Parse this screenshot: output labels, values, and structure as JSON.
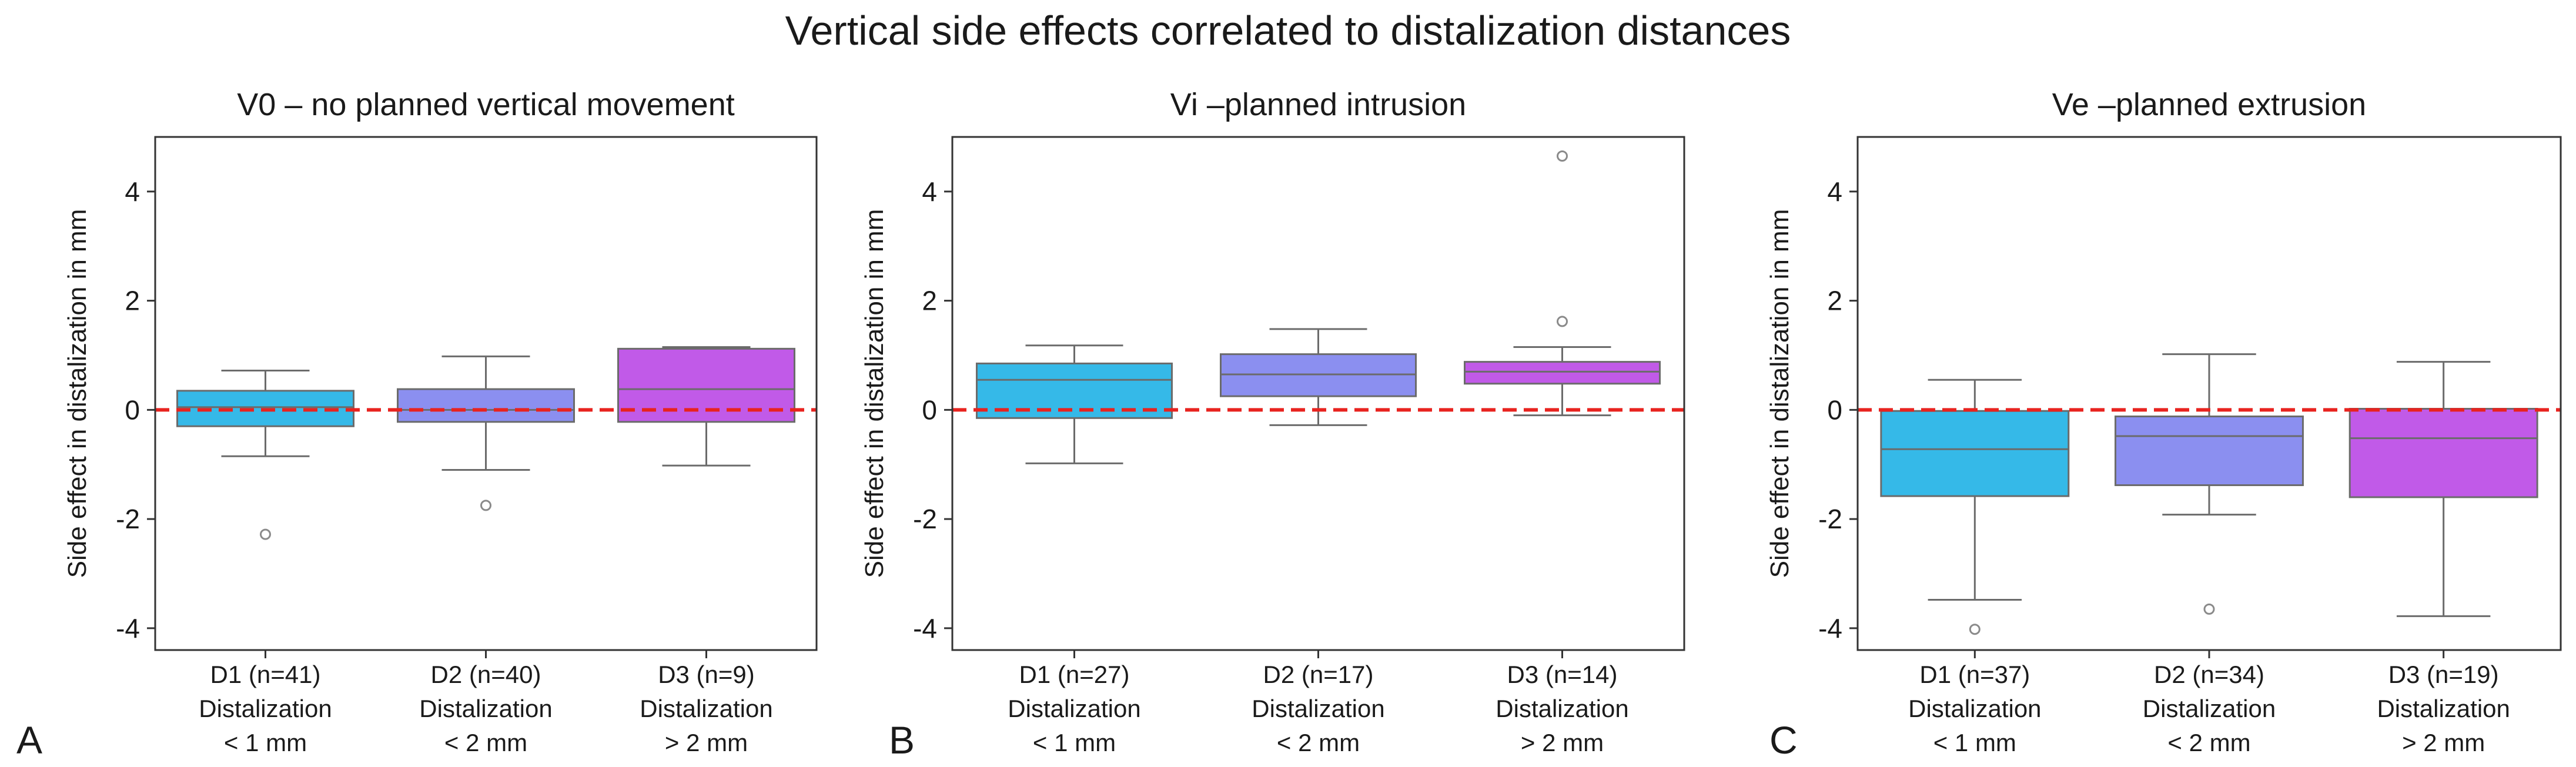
{
  "figure_title": "Vertical side effects correlated to distalization distances",
  "colors": {
    "D1": "#35b9e8",
    "D2": "#8b8ff0",
    "D3": "#c15ae8",
    "reference_line": "#e8231f",
    "axis": "#333333",
    "whisker": "#6b6b6b"
  },
  "chart_data": [
    {
      "type": "box",
      "panel_label": "A",
      "title": "V0 – no planned vertical movement",
      "ylabel": "Side effect in distalization in mm",
      "xlabel": "",
      "ylim": [
        -4.4,
        5.0
      ],
      "yticks": [
        -4,
        -2,
        0,
        2,
        4
      ],
      "reference_line": 0,
      "categories": [
        {
          "group": "D1 (n=41)",
          "line2": "Distalization",
          "line3": "< 1 mm",
          "color_key": "D1",
          "whisker_low": -0.85,
          "q1": -0.3,
          "median": 0.05,
          "q3": 0.35,
          "whisker_high": 0.72,
          "outliers": [
            -2.28
          ]
        },
        {
          "group": "D2 (n=40)",
          "line2": "Distalization",
          "line3": "< 2 mm",
          "color_key": "D2",
          "whisker_low": -1.1,
          "q1": -0.22,
          "median": 0.0,
          "q3": 0.38,
          "whisker_high": 0.98,
          "outliers": [
            -1.75
          ]
        },
        {
          "group": "D3 (n=9)",
          "line2": "Distalization",
          "line3": "> 2 mm",
          "color_key": "D3",
          "whisker_low": -1.02,
          "q1": -0.22,
          "median": 0.38,
          "q3": 1.12,
          "whisker_high": 1.15,
          "outliers": []
        }
      ]
    },
    {
      "type": "box",
      "panel_label": "B",
      "title": "Vi –planned intrusion",
      "ylabel": "Side effect in distalization in mm",
      "xlabel": "",
      "ylim": [
        -4.4,
        5.0
      ],
      "yticks": [
        -4,
        -2,
        0,
        2,
        4
      ],
      "reference_line": 0,
      "categories": [
        {
          "group": "D1 (n=27)",
          "line2": "Distalization",
          "line3": "< 1 mm",
          "color_key": "D1",
          "whisker_low": -0.98,
          "q1": -0.15,
          "median": 0.55,
          "q3": 0.85,
          "whisker_high": 1.18,
          "outliers": []
        },
        {
          "group": "D2 (n=17)",
          "line2": "Distalization",
          "line3": "< 2 mm",
          "color_key": "D2",
          "whisker_low": -0.28,
          "q1": 0.25,
          "median": 0.65,
          "q3": 1.02,
          "whisker_high": 1.48,
          "outliers": []
        },
        {
          "group": "D3 (n=14)",
          "line2": "Distalization",
          "line3": "> 2 mm",
          "color_key": "D3",
          "whisker_low": -0.1,
          "q1": 0.48,
          "median": 0.7,
          "q3": 0.88,
          "whisker_high": 1.15,
          "outliers": [
            1.62,
            4.65
          ]
        }
      ]
    },
    {
      "type": "box",
      "panel_label": "C",
      "title": "Ve –planned extrusion",
      "ylabel": "Side effect in distalization in mm",
      "xlabel": "",
      "ylim": [
        -4.4,
        5.0
      ],
      "yticks": [
        -4,
        -2,
        0,
        2,
        4
      ],
      "reference_line": 0,
      "categories": [
        {
          "group": "D1 (n=37)",
          "line2": "Distalization",
          "line3": "< 1 mm",
          "color_key": "D1",
          "whisker_low": -3.48,
          "q1": -1.58,
          "median": -0.72,
          "q3": -0.02,
          "whisker_high": 0.55,
          "outliers": [
            -4.02
          ]
        },
        {
          "group": "D2 (n=34)",
          "line2": "Distalization",
          "line3": "< 2 mm",
          "color_key": "D2",
          "whisker_low": -1.92,
          "q1": -1.38,
          "median": -0.48,
          "q3": -0.12,
          "whisker_high": 1.02,
          "outliers": [
            -3.65
          ]
        },
        {
          "group": "D3 (n=19)",
          "line2": "Distalization",
          "line3": "> 2 mm",
          "color_key": "D3",
          "whisker_low": -3.78,
          "q1": -1.6,
          "median": -0.52,
          "q3": 0.02,
          "whisker_high": 0.88,
          "outliers": []
        }
      ]
    }
  ]
}
